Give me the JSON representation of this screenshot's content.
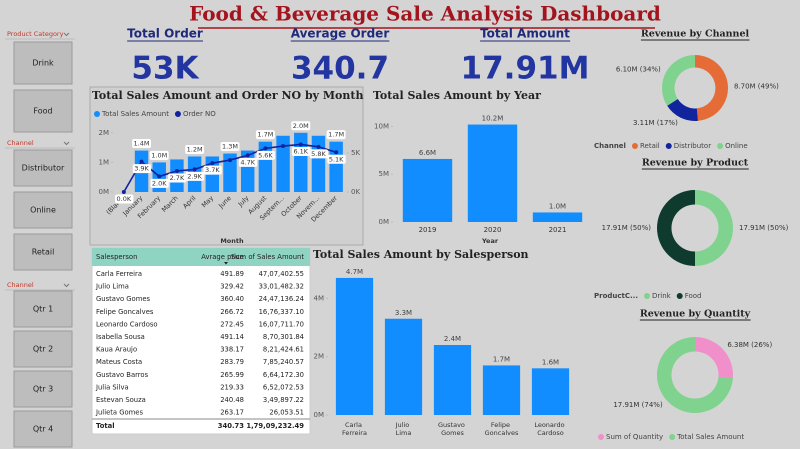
{
  "title": "Food & Beverage Sale Analysis Dashboard",
  "slicers": [
    {
      "title": "Product Category",
      "items": [
        "Drink",
        "Food"
      ]
    },
    {
      "title": "Channel",
      "items": [
        "Distributor",
        "Online",
        "Retail"
      ]
    },
    {
      "title": "Channel",
      "items": [
        "Qtr 1",
        "Qtr 2",
        "Qtr 3",
        "Qtr 4"
      ]
    }
  ],
  "kpis": [
    {
      "label": "Total Order",
      "value": "53K"
    },
    {
      "label": "Average Order",
      "value": "340.7"
    },
    {
      "label": "Total Amount",
      "value": "17.91M"
    }
  ],
  "table": {
    "headers": [
      "Salesperson",
      "Avrage price",
      "Sum of Sales Amount"
    ],
    "rows": [
      [
        "Carla Ferreira",
        "491.89",
        "47,07,402.55"
      ],
      [
        "Julio Lima",
        "329.42",
        "33,01,482.32"
      ],
      [
        "Gustavo Gomes",
        "360.40",
        "24,47,136.24"
      ],
      [
        "Felipe Goncalves",
        "266.72",
        "16,76,337.10"
      ],
      [
        "Leonardo Cardoso",
        "272.45",
        "16,07,711.70"
      ],
      [
        "Isabella Sousa",
        "491.14",
        "8,70,301.84"
      ],
      [
        "Kaua Araujo",
        "338.17",
        "8,21,424.61"
      ],
      [
        "Mateus Costa",
        "283.79",
        "7,85,240.57"
      ],
      [
        "Gustavo Barros",
        "265.99",
        "6,64,172.30"
      ],
      [
        "Julia Silva",
        "219.33",
        "6,52,072.53"
      ],
      [
        "Estevan Souza",
        "240.48",
        "3,49,897.22"
      ],
      [
        "Julieta Gomes",
        "263.17",
        "26,053.51"
      ]
    ],
    "total": [
      "Total",
      "340.73",
      "1,79,09,232.49"
    ]
  },
  "chart_data": [
    {
      "type": "combo",
      "title": "Total Sales Amount and Order NO by Month",
      "xlabel": "Month",
      "legend": "top-left",
      "categories": [
        "(Blank)",
        "January",
        "February",
        "March",
        "April",
        "May",
        "June",
        "July",
        "August",
        "Septem...",
        "October",
        "Novem...",
        "December"
      ],
      "series": [
        {
          "name": "Total Sales Amount",
          "color": "#118dff",
          "type": "bar",
          "values": [
            0,
            1400000,
            1000000,
            1100000,
            1200000,
            1200000,
            1300000,
            1400000,
            1700000,
            1900000,
            2000000,
            1900000,
            1700000
          ],
          "value_labels": [
            null,
            "1.4M",
            "1.0M",
            null,
            "1.2M",
            null,
            "1.3M",
            null,
            "1.7M",
            null,
            "2.0M",
            null,
            "1.7M"
          ]
        },
        {
          "name": "Order NO",
          "color": "#12239e",
          "type": "line",
          "axis": "y2",
          "values": [
            0,
            3900,
            2000,
            2700,
            2900,
            3700,
            4100,
            4700,
            5600,
            5900,
            6100,
            5800,
            5100
          ],
          "value_labels": [
            "0.0K",
            "3.9K",
            "2.0K",
            "2.7K",
            "2.9K",
            "3.7K",
            null,
            "4.7K",
            "5.6K",
            null,
            "6.1K",
            "5.8K",
            "5.1K"
          ]
        }
      ],
      "ylim": [
        0,
        2500000
      ],
      "yticks": [
        {
          "value": 0,
          "label": "0M"
        },
        {
          "value": 1000000,
          "label": "1M"
        },
        {
          "value": 2000000,
          "label": "2M"
        }
      ],
      "y2lim": [
        0,
        9500
      ],
      "y2ticks": [
        {
          "value": 0,
          "label": "0K"
        },
        {
          "value": 5000,
          "label": "5K"
        }
      ]
    },
    {
      "type": "bar",
      "title": "Total Sales Amount by Year",
      "xlabel": "Year",
      "color": "#118dff",
      "categories": [
        "2019",
        "2020",
        "2021"
      ],
      "values": [
        6600000,
        10200000,
        1000000
      ],
      "value_labels": [
        "6.6M",
        "10.2M",
        "1.0M"
      ],
      "ylim": [
        0,
        11200000
      ],
      "yticks": [
        {
          "value": 0,
          "label": "0M"
        },
        {
          "value": 5000000,
          "label": "5M"
        },
        {
          "value": 10000000,
          "label": "10M"
        }
      ]
    },
    {
      "type": "bar",
      "title": "Total Sales Amount by Salesperson",
      "color": "#118dff",
      "categories": [
        "Carla Ferreira",
        "Julio Lima",
        "Gustavo Gomes",
        "Felipe Goncalves",
        "Leonardo Cardoso"
      ],
      "values": [
        4700000,
        3300000,
        2400000,
        1700000,
        1600000
      ],
      "value_labels": [
        "4.7M",
        "3.3M",
        "2.4M",
        "1.7M",
        "1.6M"
      ],
      "ylim": [
        0,
        4800000
      ],
      "yticks": [
        {
          "value": 0,
          "label": "0M"
        },
        {
          "value": 2000000,
          "label": "2M"
        },
        {
          "value": 4000000,
          "label": "4M"
        }
      ]
    },
    {
      "type": "donut",
      "title": "Revenue by Channel",
      "legend_title": "Channel",
      "categories": [
        "Retail",
        "Distributor",
        "Online"
      ],
      "values": [
        8700000,
        3110000,
        6100000
      ],
      "value_labels": [
        "8.70M (49%)",
        "3.11M (17%)",
        "6.10M (34%)"
      ],
      "colors": [
        "#e66c37",
        "#12239e",
        "#7fd38e"
      ]
    },
    {
      "type": "donut",
      "title": "Revenue by Product",
      "legend_title": "ProductC...",
      "categories": [
        "Drink",
        "Food"
      ],
      "values": [
        17910000,
        17910000
      ],
      "value_labels": [
        "17.91M (50%)",
        "17.91M (50%)"
      ],
      "colors": [
        "#7fd38e",
        "#0e3b2e"
      ]
    },
    {
      "type": "donut",
      "title": "Revenue by Quantity",
      "categories": [
        "Sum of Quantity",
        "Total Sales Amount"
      ],
      "values": [
        6380000,
        17910000
      ],
      "value_labels": [
        "6.38M (26%)",
        "17.91M (74%)"
      ],
      "colors": [
        "#f08fc9",
        "#7fd38e"
      ]
    }
  ]
}
